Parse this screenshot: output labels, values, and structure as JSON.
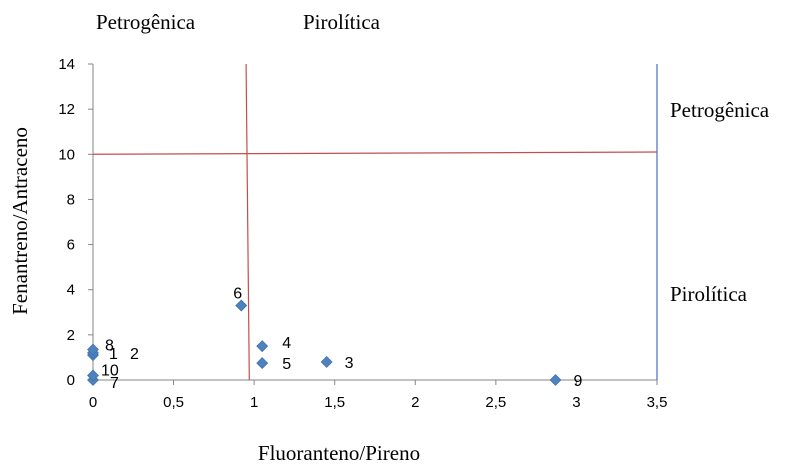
{
  "chart_data": {
    "type": "scatter",
    "xlabel": "Fluoranteno/Pireno",
    "ylabel": "Fenantreno/Antraceno",
    "xlim": [
      0,
      3.5
    ],
    "ylim": [
      0,
      14
    ],
    "x_ticks": [
      "0",
      "0,5",
      "1",
      "1,5",
      "2",
      "2,5",
      "3",
      "3,5"
    ],
    "y_ticks": [
      "0",
      "2",
      "4",
      "6",
      "8",
      "10",
      "12",
      "14"
    ],
    "grid": false,
    "marker_color": "#4f81bd",
    "threshold_color": "#c0504d",
    "border_color": "#4472c4",
    "thresholds": {
      "vertical": {
        "x_top": 0.95,
        "x_bottom": 0.97
      },
      "horizontal": {
        "y_left": 10.0,
        "y_right": 10.1
      }
    },
    "region_labels": {
      "top_left": "Petrogênica",
      "top_right": "Pirolítica",
      "right_upper": "Petrogênica",
      "right_lower": "Pirolítica"
    },
    "points": [
      {
        "label": "1",
        "x": 0.0,
        "y": 1.1
      },
      {
        "label": "2",
        "x": 0.0,
        "y": 1.2
      },
      {
        "label": "3",
        "x": 1.45,
        "y": 0.8
      },
      {
        "label": "4",
        "x": 1.05,
        "y": 1.5
      },
      {
        "label": "5",
        "x": 1.05,
        "y": 0.75
      },
      {
        "label": "6",
        "x": 0.92,
        "y": 3.3
      },
      {
        "label": "7",
        "x": 0.0,
        "y": 0.0
      },
      {
        "label": "8",
        "x": 0.0,
        "y": 1.35
      },
      {
        "label": "9",
        "x": 2.87,
        "y": 0.0
      },
      {
        "label": "10",
        "x": 0.0,
        "y": 0.2
      }
    ]
  }
}
